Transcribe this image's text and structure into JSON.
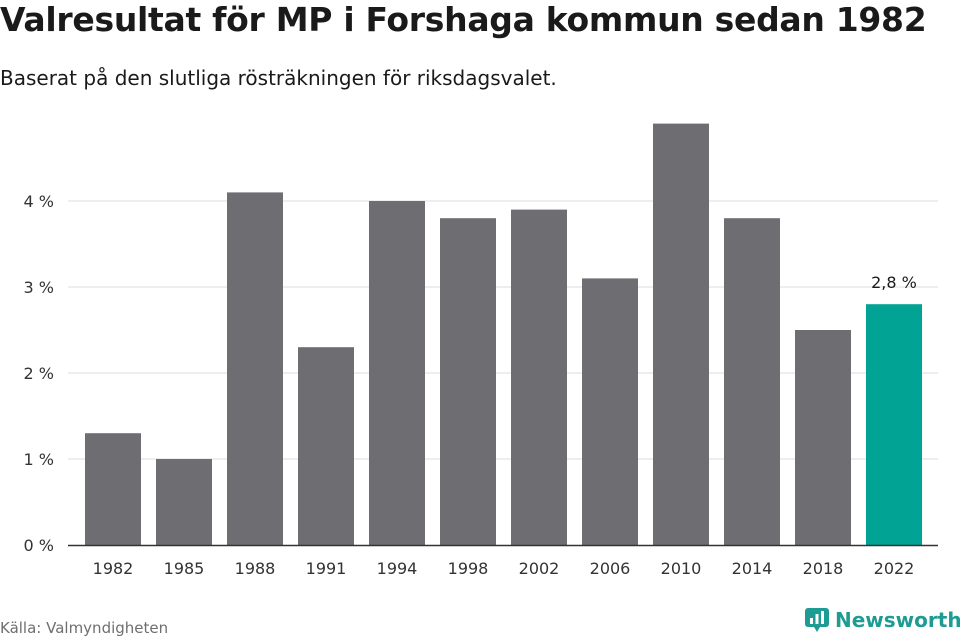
{
  "header": {
    "title": "Valresultat för MP i Forshaga kommun sedan 1982",
    "subtitle": "Baserat på den slutliga rösträkningen för riksdagsvalet."
  },
  "footer": {
    "source": "Källa: Valmyndigheten",
    "brand": "Newsworthy"
  },
  "colors": {
    "bar": "#6e6d72",
    "highlight": "#00a394",
    "grid": "#dddddd",
    "axis": "#333333",
    "brand": "#1e9c93"
  },
  "chart_data": {
    "type": "bar",
    "categories": [
      "1982",
      "1985",
      "1988",
      "1991",
      "1994",
      "1998",
      "2002",
      "2006",
      "2010",
      "2014",
      "2018",
      "2022"
    ],
    "values": [
      1.3,
      1.0,
      4.1,
      2.3,
      4.0,
      3.8,
      3.9,
      3.1,
      4.9,
      3.8,
      2.5,
      2.8
    ],
    "unit": "%",
    "ylim": [
      0,
      5
    ],
    "yticks": [
      0,
      1,
      2,
      3,
      4
    ],
    "ytick_labels": [
      "0 %",
      "1 %",
      "2 %",
      "3 %",
      "4 %"
    ],
    "grid": true,
    "highlight_index": 11,
    "data_labels": [
      {
        "index": 11,
        "text": "2,8 %"
      }
    ]
  }
}
